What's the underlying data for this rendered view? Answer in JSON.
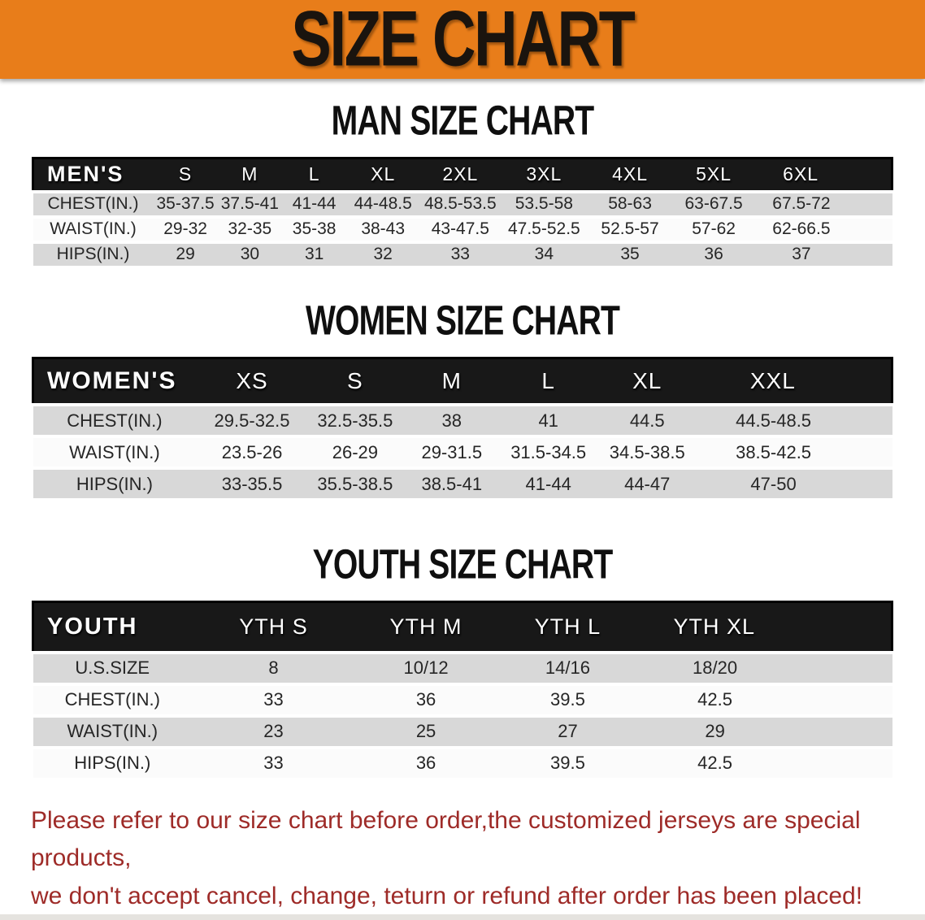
{
  "banner": {
    "title": "SIZE CHART"
  },
  "sections": [
    {
      "heading": "MAN SIZE CHART",
      "table": {
        "header_label": "MEN'S",
        "columns": [
          "S",
          "M",
          "L",
          "XL",
          "2XL",
          "3XL",
          "4XL",
          "5XL",
          "6XL"
        ],
        "rows": [
          {
            "label": "CHEST(IN.)",
            "values": [
              "35-37.5",
              "37.5-41",
              "41-44",
              "44-48.5",
              "48.5-53.5",
              "53.5-58",
              "58-63",
              "63-67.5",
              "67.5-72"
            ]
          },
          {
            "label": "WAIST(IN.)",
            "values": [
              "29-32",
              "32-35",
              "35-38",
              "38-43",
              "43-47.5",
              "47.5-52.5",
              "52.5-57",
              "57-62",
              "62-66.5"
            ]
          },
          {
            "label": "HIPS(IN.)",
            "values": [
              "29",
              "30",
              "31",
              "32",
              "33",
              "34",
              "35",
              "36",
              "37"
            ]
          }
        ]
      }
    },
    {
      "heading": "WOMEN SIZE CHART",
      "table": {
        "header_label": "WOMEN'S",
        "columns": [
          "XS",
          "S",
          "M",
          "L",
          "XL",
          "XXL"
        ],
        "rows": [
          {
            "label": "CHEST(IN.)",
            "values": [
              "29.5-32.5",
              "32.5-35.5",
              "38",
              "41",
              "44.5",
              "44.5-48.5"
            ]
          },
          {
            "label": "WAIST(IN.)",
            "values": [
              "23.5-26",
              "26-29",
              "29-31.5",
              "31.5-34.5",
              "34.5-38.5",
              "38.5-42.5"
            ]
          },
          {
            "label": "HIPS(IN.)",
            "values": [
              "33-35.5",
              "35.5-38.5",
              "38.5-41",
              "41-44",
              "44-47",
              "47-50"
            ]
          }
        ]
      }
    },
    {
      "heading": "YOUTH SIZE CHART",
      "table": {
        "header_label": "YOUTH",
        "columns": [
          "YTH S",
          "YTH M",
          "YTH L",
          "YTH XL"
        ],
        "rows": [
          {
            "label": "U.S.SIZE",
            "values": [
              "8",
              "10/12",
              "14/16",
              "18/20"
            ]
          },
          {
            "label": "CHEST(IN.)",
            "values": [
              "33",
              "36",
              "39.5",
              "42.5"
            ]
          },
          {
            "label": "WAIST(IN.)",
            "values": [
              "23",
              "25",
              "27",
              "29"
            ]
          },
          {
            "label": "HIPS(IN.)",
            "values": [
              "33",
              "36",
              "39.5",
              "42.5"
            ]
          }
        ]
      }
    }
  ],
  "disclaimer": {
    "line1": "Please refer to our size chart before order,the customized jerseys are special products,",
    "line2": "we don't accept cancel, change, teturn or refund after order has been placed!"
  },
  "colors": {
    "banner_orange": "#e87d1a",
    "table_header_black": "#181818",
    "row_gray": "#d8d8d8",
    "row_white": "#fbfbfb",
    "disclaimer_red": "#9e2b28"
  }
}
